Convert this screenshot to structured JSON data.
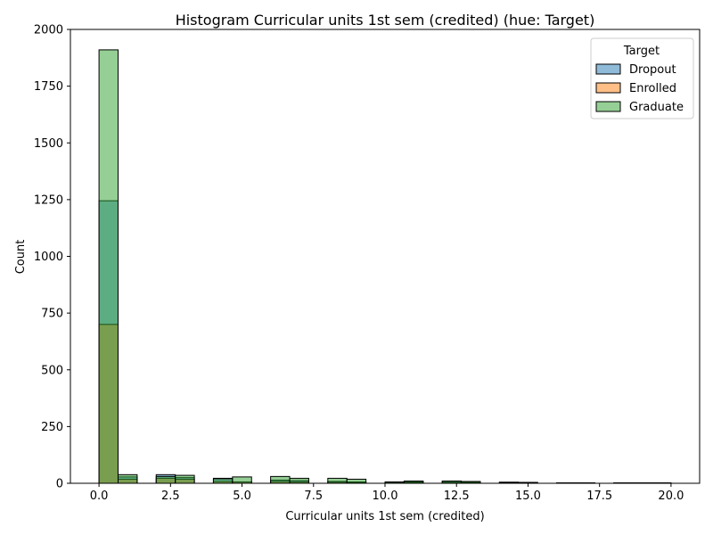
{
  "chart_data": {
    "type": "bar",
    "title": "Histogram Curricular units 1st sem (credited) (hue: Target)",
    "xlabel": "Curricular units 1st sem (credited)",
    "ylabel": "Count",
    "xlim": [
      -1.0,
      21.0
    ],
    "ylim": [
      0,
      2000
    ],
    "xticks": [
      0.0,
      2.5,
      5.0,
      7.5,
      10.0,
      12.5,
      15.0,
      17.5,
      20.0
    ],
    "xtick_labels": [
      "0.0",
      "2.5",
      "5.0",
      "7.5",
      "10.0",
      "12.5",
      "15.0",
      "17.5",
      "20.0"
    ],
    "yticks": [
      0,
      250,
      500,
      750,
      1000,
      1250,
      1500,
      1750,
      2000
    ],
    "ytick_labels": [
      "0",
      "250",
      "500",
      "750",
      "1000",
      "1250",
      "1500",
      "1750",
      "2000"
    ],
    "bin_width": 0.6667,
    "grid": false,
    "legend": {
      "title": "Target",
      "placement": "top-right",
      "entries": [
        "Dropout",
        "Enrolled",
        "Graduate"
      ]
    },
    "series": [
      {
        "name": "Dropout",
        "color": "#1f77b4",
        "bins": [
          [
            0.0,
            1245
          ],
          [
            0.667,
            28
          ],
          [
            2.0,
            38
          ],
          [
            2.667,
            25
          ],
          [
            4.0,
            22
          ],
          [
            4.667,
            6
          ],
          [
            6.0,
            14
          ],
          [
            6.667,
            12
          ],
          [
            8.0,
            8
          ],
          [
            8.667,
            6
          ],
          [
            10.0,
            6
          ],
          [
            10.667,
            8
          ],
          [
            12.0,
            8
          ],
          [
            12.667,
            6
          ],
          [
            14.0,
            5
          ],
          [
            14.667,
            3
          ],
          [
            16.0,
            2
          ],
          [
            16.667,
            2
          ],
          [
            18.0,
            2
          ],
          [
            18.667,
            1
          ],
          [
            19.333,
            1
          ]
        ]
      },
      {
        "name": "Enrolled",
        "color": "#ff7f0e",
        "bins": [
          [
            0.0,
            700
          ],
          [
            0.667,
            18
          ],
          [
            2.0,
            22
          ],
          [
            2.667,
            18
          ],
          [
            4.0,
            8
          ],
          [
            4.667,
            6
          ],
          [
            6.0,
            8
          ],
          [
            6.667,
            6
          ],
          [
            8.0,
            5
          ],
          [
            8.667,
            4
          ],
          [
            10.0,
            3
          ],
          [
            10.667,
            4
          ],
          [
            12.0,
            3
          ],
          [
            12.667,
            2
          ],
          [
            14.0,
            2
          ],
          [
            14.667,
            1
          ],
          [
            16.0,
            1
          ],
          [
            16.667,
            1
          ],
          [
            18.0,
            1
          ],
          [
            18.667,
            1
          ],
          [
            19.333,
            1
          ]
        ]
      },
      {
        "name": "Graduate",
        "color": "#2ca02c",
        "bins": [
          [
            0.0,
            1910
          ],
          [
            0.667,
            38
          ],
          [
            2.0,
            30
          ],
          [
            2.667,
            35
          ],
          [
            4.0,
            20
          ],
          [
            4.667,
            28
          ],
          [
            6.0,
            30
          ],
          [
            6.667,
            22
          ],
          [
            8.0,
            22
          ],
          [
            8.667,
            18
          ],
          [
            10.0,
            6
          ],
          [
            10.667,
            10
          ],
          [
            12.0,
            10
          ],
          [
            12.667,
            8
          ],
          [
            14.0,
            4
          ],
          [
            14.667,
            4
          ],
          [
            16.0,
            2
          ],
          [
            16.667,
            2
          ],
          [
            18.0,
            2
          ],
          [
            18.667,
            2
          ],
          [
            19.333,
            2
          ]
        ]
      }
    ]
  }
}
